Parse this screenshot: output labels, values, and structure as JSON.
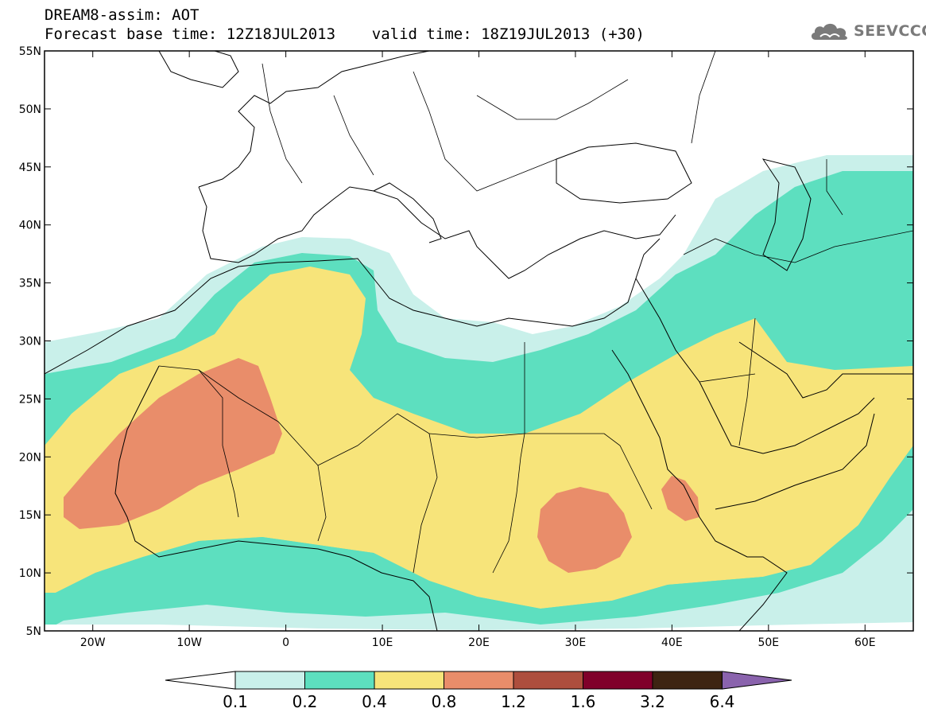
{
  "header": {
    "title_line1": "DREAM8-assim: AOT",
    "title_line2": "Forecast base time: 12Z18JUL2013    valid time: 18Z19JUL2013 (+30)"
  },
  "logo": {
    "text": "SEEVCCC",
    "icon": "cloud-icon"
  },
  "map": {
    "lat_labels": [
      "55N",
      "50N",
      "45N",
      "40N",
      "35N",
      "30N",
      "25N",
      "20N",
      "15N",
      "10N",
      "5N"
    ],
    "lon_labels": [
      "20W",
      "10W",
      "0",
      "10E",
      "20E",
      "30E",
      "40E",
      "50E",
      "60E"
    ],
    "lat_values": [
      55,
      50,
      45,
      40,
      35,
      30,
      25,
      20,
      15,
      10,
      5
    ],
    "lon_values": [
      -20,
      -10,
      0,
      10,
      20,
      30,
      40,
      50,
      60
    ],
    "domain": {
      "lon_min": -25,
      "lon_max": 65,
      "lat_min": 5,
      "lat_max": 55
    }
  },
  "colorbar": {
    "labels": [
      "0.1",
      "0.2",
      "0.4",
      "0.8",
      "1.2",
      "1.6",
      "3.2",
      "6.4"
    ],
    "colors": {
      "below": "#ffffff",
      "c0": "#c9f0ea",
      "c1": "#5ddfbf",
      "c2": "#f7e47a",
      "c3": "#e98d6a",
      "c4": "#ad4e3d",
      "c5": "#80002a",
      "c6": "#3d2412",
      "above": "#8a63ad"
    }
  }
}
